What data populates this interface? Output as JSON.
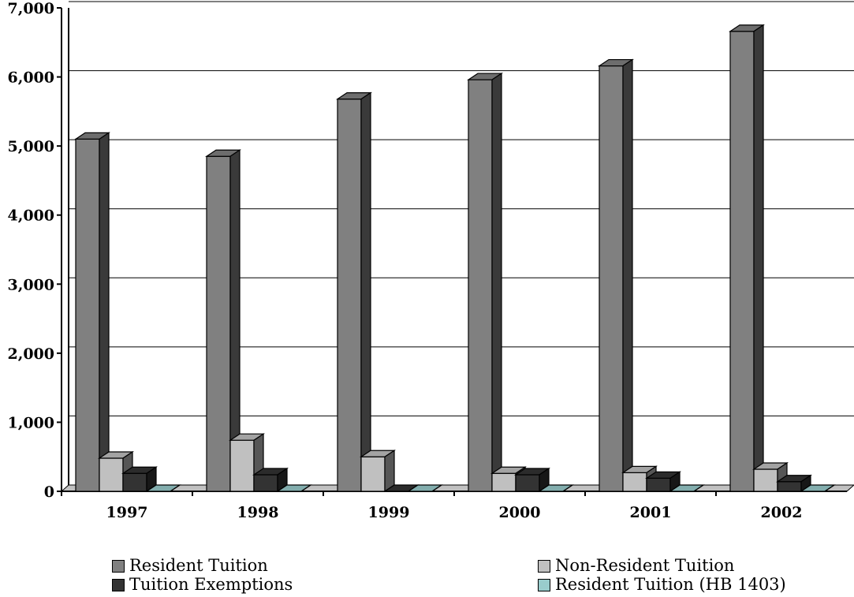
{
  "chart_data": {
    "type": "bar",
    "title": "",
    "xlabel": "",
    "ylabel": "",
    "categories": [
      "1997",
      "1998",
      "1999",
      "2000",
      "2001",
      "2002"
    ],
    "ylim": [
      0,
      7000
    ],
    "yticks": [
      "0",
      "1,000",
      "2,000",
      "3,000",
      "4,000",
      "5,000",
      "6,000",
      "7,000"
    ],
    "grid": true,
    "legend_position": "bottom",
    "series": [
      {
        "name": "Resident Tuition",
        "color": "#808080",
        "values": [
          5100,
          4850,
          5680,
          5960,
          6160,
          6660
        ]
      },
      {
        "name": "Non-Resident Tuition",
        "color": "#c0c0c0",
        "values": [
          480,
          740,
          500,
          260,
          270,
          320
        ]
      },
      {
        "name": "Tuition Exemptions",
        "color": "#333333",
        "values": [
          260,
          240,
          0,
          240,
          190,
          140
        ]
      },
      {
        "name": "Resident Tuition (HB 1403)",
        "color": "#99cccc",
        "values": [
          0,
          0,
          0,
          0,
          0,
          0
        ]
      }
    ]
  }
}
